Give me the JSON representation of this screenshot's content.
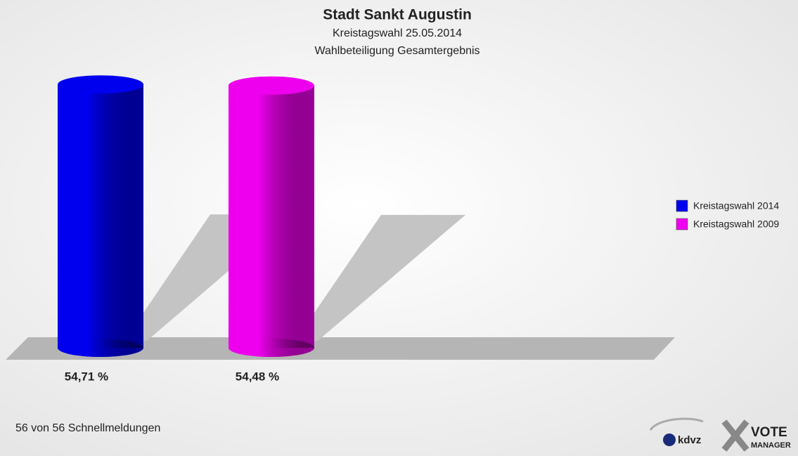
{
  "chart_data": {
    "type": "bar",
    "title": "Stadt Sankt Augustin",
    "subtitle": "Kreistagswahl 25.05.2014",
    "subtitle2": "Wahlbeteiligung Gesamtergebnis",
    "series": [
      {
        "name": "Kreistagswahl 2014",
        "color": "#0000ee",
        "values": [
          54.71
        ],
        "value_labels": [
          "54,71 %"
        ]
      },
      {
        "name": "Kreistagswahl 2009",
        "color": "#ee00ee",
        "values": [
          54.48
        ],
        "value_labels": [
          "54,48 %"
        ]
      }
    ],
    "legend": "right"
  },
  "footer": "56 von 56 Schnellmeldungen",
  "logo": {
    "brand": "kdvz",
    "product": "VOTE",
    "product2": "MANAGER"
  }
}
